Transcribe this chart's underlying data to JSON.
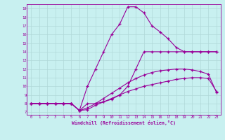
{
  "xlabel": "Windchill (Refroidissement éolien,°C)",
  "bg_color": "#c8f0f0",
  "line_color": "#990099",
  "grid_color": "#b0d8d8",
  "xlim": [
    -0.5,
    23.5
  ],
  "ylim": [
    6.7,
    19.5
  ],
  "xticks": [
    0,
    1,
    2,
    3,
    4,
    5,
    6,
    7,
    8,
    9,
    10,
    11,
    12,
    13,
    14,
    15,
    16,
    17,
    18,
    19,
    20,
    21,
    22,
    23
  ],
  "yticks": [
    7,
    8,
    9,
    10,
    11,
    12,
    13,
    14,
    15,
    16,
    17,
    18,
    19
  ],
  "series": [
    {
      "x": [
        0,
        1,
        2,
        3,
        4,
        5,
        6,
        7,
        8,
        9,
        10,
        11,
        12,
        13,
        14,
        15,
        16,
        17,
        18,
        19,
        20,
        21,
        22,
        23
      ],
      "y": [
        8.0,
        8.0,
        8.0,
        8.0,
        8.0,
        8.0,
        7.2,
        7.3,
        7.8,
        8.2,
        8.6,
        9.0,
        9.4,
        9.7,
        10.0,
        10.2,
        10.4,
        10.6,
        10.8,
        10.9,
        11.0,
        11.0,
        10.9,
        9.4
      ]
    },
    {
      "x": [
        0,
        1,
        2,
        3,
        4,
        5,
        6,
        7,
        8,
        9,
        10,
        11,
        12,
        13,
        14,
        15,
        16,
        17,
        18,
        19,
        20,
        21,
        22,
        23
      ],
      "y": [
        8.0,
        8.0,
        8.0,
        8.0,
        8.0,
        8.0,
        7.2,
        7.5,
        8.0,
        8.6,
        9.2,
        9.8,
        10.4,
        10.9,
        11.3,
        11.6,
        11.8,
        11.9,
        12.0,
        12.0,
        11.9,
        11.7,
        11.4,
        9.3
      ]
    },
    {
      "x": [
        0,
        1,
        2,
        3,
        4,
        5,
        6,
        7,
        8,
        9,
        10,
        11,
        12,
        13,
        14,
        15,
        16,
        17,
        18,
        19,
        20,
        21,
        22,
        23
      ],
      "y": [
        8.0,
        8.0,
        8.0,
        8.0,
        8.0,
        8.0,
        7.2,
        8.0,
        8.0,
        8.2,
        8.5,
        9.0,
        10.0,
        12.0,
        14.0,
        14.0,
        14.0,
        14.0,
        14.0,
        14.0,
        14.0,
        14.0,
        14.0,
        14.0
      ]
    },
    {
      "x": [
        0,
        1,
        2,
        3,
        4,
        5,
        6,
        7,
        8,
        9,
        10,
        11,
        12,
        13,
        14,
        15,
        16,
        17,
        18,
        19,
        20,
        21,
        22,
        23
      ],
      "y": [
        8.0,
        8.0,
        8.0,
        8.0,
        8.0,
        8.0,
        7.2,
        10.0,
        12.0,
        14.0,
        16.0,
        17.2,
        19.2,
        19.2,
        18.5,
        17.0,
        16.3,
        15.5,
        14.5,
        14.0,
        14.0,
        14.0,
        14.0,
        14.0
      ]
    }
  ]
}
